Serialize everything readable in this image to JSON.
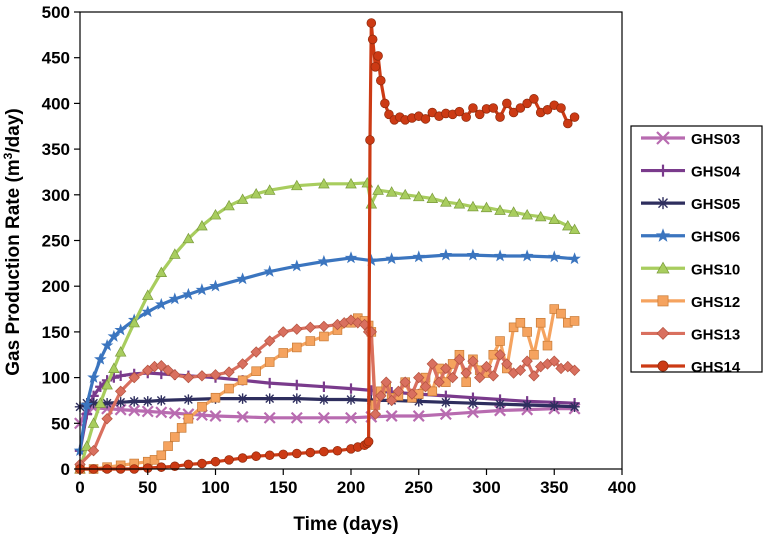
{
  "chart_data": {
    "type": "line",
    "xlabel": "Time (days)",
    "ylabel_parts": [
      "Gas Production Rate (m",
      "3",
      "/day)"
    ],
    "xlim": [
      0,
      400
    ],
    "ylim": [
      0,
      500
    ],
    "xticks": [
      0,
      50,
      100,
      150,
      200,
      250,
      300,
      350,
      400
    ],
    "yticks": [
      0,
      50,
      100,
      150,
      200,
      250,
      300,
      350,
      400,
      450,
      500
    ],
    "grid": false,
    "legend_position": "right",
    "series": [
      {
        "name": "GHS03",
        "color": "#b86bb0",
        "marker": "x",
        "x": [
          0,
          5,
          10,
          20,
          30,
          40,
          50,
          60,
          70,
          80,
          90,
          100,
          120,
          140,
          160,
          180,
          200,
          215,
          230,
          250,
          270,
          290,
          310,
          330,
          350,
          365
        ],
        "y": [
          50,
          65,
          67,
          66,
          65,
          64,
          63,
          62,
          61,
          60,
          59,
          58,
          57,
          56,
          56,
          56,
          56,
          57,
          58,
          58,
          60,
          62,
          64,
          65,
          66,
          66
        ]
      },
      {
        "name": "GHS04",
        "color": "#7a3b8c",
        "marker": "plus",
        "x": [
          0,
          5,
          10,
          15,
          20,
          25,
          30,
          40,
          50,
          60,
          70,
          80,
          100,
          120,
          140,
          160,
          180,
          200,
          215,
          230,
          250,
          270,
          290,
          310,
          330,
          350,
          365
        ],
        "y": [
          20,
          60,
          80,
          90,
          97,
          100,
          102,
          104,
          105,
          104,
          103,
          102,
          100,
          97,
          94,
          92,
          90,
          88,
          86,
          84,
          82,
          80,
          78,
          76,
          74,
          73,
          72
        ]
      },
      {
        "name": "GHS05",
        "color": "#2e2e5e",
        "marker": "asterisk",
        "x": [
          0,
          5,
          10,
          20,
          30,
          40,
          50,
          60,
          80,
          100,
          120,
          140,
          160,
          180,
          200,
          215,
          230,
          250,
          270,
          290,
          310,
          330,
          350,
          365
        ],
        "y": [
          68,
          72,
          72,
          72,
          73,
          74,
          74,
          75,
          76,
          77,
          77,
          77,
          77,
          76,
          76,
          75,
          75,
          74,
          73,
          72,
          71,
          70,
          69,
          68
        ]
      },
      {
        "name": "GHS06",
        "color": "#3b75bf",
        "marker": "star",
        "x": [
          0,
          5,
          10,
          15,
          20,
          25,
          30,
          40,
          50,
          60,
          70,
          80,
          90,
          100,
          120,
          140,
          160,
          180,
          200,
          215,
          230,
          250,
          270,
          290,
          310,
          330,
          350,
          365
        ],
        "y": [
          20,
          70,
          100,
          120,
          135,
          145,
          152,
          163,
          172,
          180,
          186,
          191,
          196,
          200,
          208,
          216,
          222,
          227,
          231,
          228,
          230,
          232,
          234,
          234,
          233,
          233,
          232,
          230
        ]
      },
      {
        "name": "GHS10",
        "color": "#a8cd5e",
        "marker": "triangle",
        "x": [
          0,
          5,
          10,
          15,
          20,
          25,
          30,
          40,
          50,
          60,
          70,
          80,
          90,
          100,
          110,
          120,
          130,
          140,
          160,
          180,
          200,
          212,
          215,
          220,
          230,
          240,
          250,
          260,
          270,
          280,
          290,
          300,
          310,
          320,
          330,
          340,
          350,
          360,
          365
        ],
        "y": [
          0,
          25,
          50,
          72,
          92,
          110,
          128,
          160,
          190,
          215,
          235,
          252,
          266,
          278,
          288,
          295,
          301,
          305,
          310,
          312,
          312,
          313,
          290,
          305,
          303,
          300,
          298,
          296,
          292,
          290,
          287,
          286,
          283,
          281,
          278,
          276,
          273,
          266,
          262
        ]
      },
      {
        "name": "GHS12",
        "color": "#f5a35f",
        "marker": "square",
        "x": [
          0,
          10,
          20,
          30,
          40,
          50,
          55,
          60,
          65,
          70,
          75,
          80,
          90,
          100,
          110,
          120,
          130,
          140,
          150,
          160,
          170,
          180,
          190,
          200,
          205,
          210,
          213,
          215,
          218,
          222,
          226,
          230,
          235,
          240,
          245,
          250,
          255,
          260,
          265,
          270,
          275,
          280,
          285,
          290,
          295,
          300,
          305,
          310,
          315,
          320,
          325,
          330,
          335,
          340,
          345,
          350,
          355,
          360,
          365
        ],
        "y": [
          0,
          0,
          2,
          4,
          6,
          8,
          10,
          15,
          25,
          35,
          45,
          55,
          68,
          78,
          88,
          97,
          107,
          117,
          127,
          133,
          140,
          145,
          152,
          160,
          165,
          162,
          157,
          150,
          70,
          85,
          90,
          78,
          80,
          95,
          78,
          82,
          100,
          85,
          110,
          95,
          115,
          125,
          95,
          120,
          108,
          105,
          125,
          140,
          110,
          155,
          160,
          150,
          125,
          160,
          135,
          175,
          170,
          160,
          162
        ]
      },
      {
        "name": "GHS13",
        "color": "#d9705f",
        "marker": "diamond",
        "x": [
          0,
          10,
          20,
          30,
          40,
          50,
          55,
          60,
          65,
          70,
          80,
          90,
          100,
          110,
          120,
          130,
          140,
          150,
          160,
          170,
          180,
          190,
          195,
          200,
          205,
          210,
          213,
          215,
          218,
          222,
          226,
          230,
          235,
          240,
          245,
          250,
          255,
          260,
          265,
          270,
          275,
          280,
          285,
          290,
          295,
          300,
          305,
          310,
          315,
          320,
          325,
          330,
          335,
          340,
          345,
          350,
          355,
          360,
          365
        ],
        "y": [
          5,
          20,
          55,
          85,
          100,
          108,
          112,
          113,
          108,
          103,
          100,
          102,
          103,
          106,
          115,
          128,
          140,
          150,
          153,
          155,
          156,
          158,
          160,
          163,
          160,
          158,
          150,
          150,
          60,
          80,
          95,
          75,
          85,
          95,
          82,
          100,
          90,
          115,
          95,
          110,
          100,
          120,
          105,
          118,
          100,
          112,
          102,
          125,
          115,
          105,
          108,
          118,
          102,
          112,
          115,
          118,
          110,
          112,
          108
        ]
      },
      {
        "name": "GHS14",
        "color": "#cc3a14",
        "marker": "circle",
        "x": [
          0,
          10,
          20,
          30,
          40,
          50,
          60,
          70,
          80,
          90,
          100,
          110,
          120,
          130,
          140,
          150,
          160,
          170,
          180,
          190,
          200,
          205,
          210,
          212,
          213,
          214,
          215,
          216,
          218,
          220,
          222,
          225,
          228,
          232,
          236,
          240,
          245,
          250,
          255,
          260,
          265,
          270,
          275,
          280,
          285,
          290,
          295,
          300,
          305,
          310,
          315,
          320,
          325,
          330,
          335,
          340,
          345,
          350,
          355,
          360,
          365
        ],
        "y": [
          0,
          0,
          0,
          0,
          0,
          1,
          2,
          3,
          5,
          6,
          8,
          10,
          12,
          14,
          15,
          16,
          17,
          18,
          19,
          20,
          22,
          24,
          26,
          28,
          30,
          360,
          488,
          470,
          440,
          452,
          425,
          400,
          388,
          382,
          385,
          382,
          384,
          386,
          383,
          390,
          386,
          389,
          388,
          391,
          385,
          395,
          388,
          394,
          395,
          385,
          400,
          390,
          395,
          400,
          405,
          390,
          393,
          398,
          395,
          378,
          385
        ]
      }
    ]
  }
}
